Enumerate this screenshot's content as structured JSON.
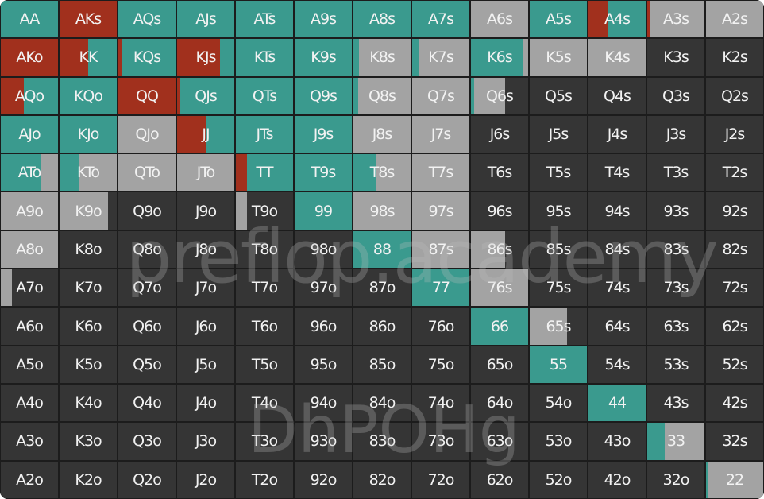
{
  "colors": {
    "raise": "#a1301d",
    "call": "#3a9a8e",
    "fold": "#a3a3a3",
    "none": "#353535"
  },
  "watermark": {
    "line1": "preflop.academy",
    "line2": "DhPOHg"
  },
  "hands": [
    [
      "AA",
      "AKs",
      "AQs",
      "AJs",
      "ATs",
      "A9s",
      "A8s",
      "A7s",
      "A6s",
      "A5s",
      "A4s",
      "A3s",
      "A2s"
    ],
    [
      "AKo",
      "KK",
      "KQs",
      "KJs",
      "KTs",
      "K9s",
      "K8s",
      "K7s",
      "K6s",
      "K5s",
      "K4s",
      "K3s",
      "K2s"
    ],
    [
      "AQo",
      "KQo",
      "QQ",
      "QJs",
      "QTs",
      "Q9s",
      "Q8s",
      "Q7s",
      "Q6s",
      "Q5s",
      "Q4s",
      "Q3s",
      "Q2s"
    ],
    [
      "AJo",
      "KJo",
      "QJo",
      "JJ",
      "JTs",
      "J9s",
      "J8s",
      "J7s",
      "J6s",
      "J5s",
      "J4s",
      "J3s",
      "J2s"
    ],
    [
      "ATo",
      "KTo",
      "QTo",
      "JTo",
      "TT",
      "T9s",
      "T8s",
      "T7s",
      "T6s",
      "T5s",
      "T4s",
      "T3s",
      "T2s"
    ],
    [
      "A9o",
      "K9o",
      "Q9o",
      "J9o",
      "T9o",
      "99",
      "98s",
      "97s",
      "96s",
      "95s",
      "94s",
      "93s",
      "92s"
    ],
    [
      "A8o",
      "K8o",
      "Q8o",
      "J8o",
      "T8o",
      "98o",
      "88",
      "87s",
      "86s",
      "85s",
      "84s",
      "83s",
      "82s"
    ],
    [
      "A7o",
      "K7o",
      "Q7o",
      "J7o",
      "T7o",
      "97o",
      "87o",
      "77",
      "76s",
      "75s",
      "74s",
      "73s",
      "72s"
    ],
    [
      "A6o",
      "K6o",
      "Q6o",
      "J6o",
      "T6o",
      "96o",
      "86o",
      "76o",
      "66",
      "65s",
      "64s",
      "63s",
      "62s"
    ],
    [
      "A5o",
      "K5o",
      "Q5o",
      "J5o",
      "T5o",
      "95o",
      "85o",
      "75o",
      "65o",
      "55",
      "54s",
      "53s",
      "52s"
    ],
    [
      "A4o",
      "K4o",
      "Q4o",
      "J4o",
      "T4o",
      "94o",
      "84o",
      "74o",
      "64o",
      "54o",
      "44",
      "43s",
      "42s"
    ],
    [
      "A3o",
      "K3o",
      "Q3o",
      "J3o",
      "T3o",
      "93o",
      "83o",
      "73o",
      "63o",
      "53o",
      "43o",
      "33",
      "32s"
    ],
    [
      "A2o",
      "K2o",
      "Q2o",
      "J2o",
      "T2o",
      "92o",
      "82o",
      "72o",
      "62o",
      "52o",
      "42o",
      "32o",
      "22"
    ]
  ],
  "frequencies": [
    [
      [
        0,
        1,
        0
      ],
      [
        1,
        0,
        0
      ],
      [
        0,
        1,
        0
      ],
      [
        0,
        1,
        0
      ],
      [
        0,
        1,
        0
      ],
      [
        0,
        1,
        0
      ],
      [
        0,
        1,
        0
      ],
      [
        0,
        1,
        0
      ],
      [
        0,
        0,
        1
      ],
      [
        0,
        1,
        0
      ],
      [
        0.35,
        0.65,
        0
      ],
      [
        0.05,
        0,
        0.95
      ],
      [
        0,
        0,
        1
      ]
    ],
    [
      [
        1,
        0,
        0
      ],
      [
        0.5,
        0.5,
        0
      ],
      [
        0.05,
        0.95,
        0
      ],
      [
        0.75,
        0.25,
        0
      ],
      [
        0,
        1,
        0
      ],
      [
        0,
        1,
        0
      ],
      [
        0,
        0.1,
        0.9
      ],
      [
        0,
        0.12,
        0.88
      ],
      [
        0,
        0.9,
        0.1
      ],
      [
        0,
        0,
        1
      ],
      [
        0,
        0,
        1
      ],
      [
        0,
        0,
        0
      ],
      [
        0,
        0,
        0
      ]
    ],
    [
      [
        0.4,
        0.6,
        0
      ],
      [
        0,
        1,
        0
      ],
      [
        1,
        0,
        0
      ],
      [
        0.05,
        0.95,
        0
      ],
      [
        0,
        1,
        0
      ],
      [
        0,
        1,
        0
      ],
      [
        0,
        0.08,
        0.92
      ],
      [
        0,
        0,
        1
      ],
      [
        0,
        0.05,
        0.55
      ],
      [
        0,
        0,
        0
      ],
      [
        0,
        0,
        0
      ],
      [
        0,
        0,
        0
      ],
      [
        0,
        0,
        0
      ]
    ],
    [
      [
        0,
        1,
        0
      ],
      [
        0,
        1,
        0
      ],
      [
        0,
        0,
        1
      ],
      [
        0.5,
        0.5,
        0
      ],
      [
        0,
        1,
        0
      ],
      [
        0,
        1,
        0
      ],
      [
        0,
        0,
        1
      ],
      [
        0,
        0,
        1
      ],
      [
        0,
        0,
        0
      ],
      [
        0,
        0,
        0
      ],
      [
        0,
        0,
        0
      ],
      [
        0,
        0,
        0
      ],
      [
        0,
        0,
        0
      ]
    ],
    [
      [
        0,
        0.7,
        0.3
      ],
      [
        0,
        0.35,
        0.65
      ],
      [
        0,
        0,
        1
      ],
      [
        0,
        0,
        1
      ],
      [
        0.2,
        0.8,
        0
      ],
      [
        0,
        1,
        0
      ],
      [
        0,
        0.4,
        0.6
      ],
      [
        0,
        0,
        1
      ],
      [
        0,
        0,
        0
      ],
      [
        0,
        0,
        0
      ],
      [
        0,
        0,
        0
      ],
      [
        0,
        0,
        0
      ],
      [
        0,
        0,
        0
      ]
    ],
    [
      [
        0,
        0,
        1
      ],
      [
        0,
        0,
        0.85
      ],
      [
        0,
        0,
        0
      ],
      [
        0,
        0,
        0
      ],
      [
        0,
        0,
        0.2
      ],
      [
        0,
        1,
        0
      ],
      [
        0,
        0,
        1
      ],
      [
        0,
        0,
        1
      ],
      [
        0,
        0,
        0
      ],
      [
        0,
        0,
        0
      ],
      [
        0,
        0,
        0
      ],
      [
        0,
        0,
        0
      ],
      [
        0,
        0,
        0
      ]
    ],
    [
      [
        0,
        0,
        1
      ],
      [
        0,
        0,
        0
      ],
      [
        0,
        0,
        0
      ],
      [
        0,
        0,
        0
      ],
      [
        0,
        0,
        0
      ],
      [
        0,
        0,
        0
      ],
      [
        0,
        1,
        0
      ],
      [
        0,
        0,
        1
      ],
      [
        0,
        0,
        0.6
      ],
      [
        0,
        0,
        0
      ],
      [
        0,
        0,
        0
      ],
      [
        0,
        0,
        0
      ],
      [
        0,
        0,
        0
      ]
    ],
    [
      [
        0,
        0,
        0.2
      ],
      [
        0,
        0,
        0
      ],
      [
        0,
        0,
        0
      ],
      [
        0,
        0,
        0
      ],
      [
        0,
        0,
        0
      ],
      [
        0,
        0,
        0
      ],
      [
        0,
        0,
        0
      ],
      [
        0,
        1,
        0
      ],
      [
        0,
        0,
        1
      ],
      [
        0,
        0,
        0
      ],
      [
        0,
        0,
        0
      ],
      [
        0,
        0,
        0
      ],
      [
        0,
        0,
        0
      ]
    ],
    [
      [
        0,
        0,
        0
      ],
      [
        0,
        0,
        0
      ],
      [
        0,
        0,
        0
      ],
      [
        0,
        0,
        0
      ],
      [
        0,
        0,
        0
      ],
      [
        0,
        0,
        0
      ],
      [
        0,
        0,
        0
      ],
      [
        0,
        0,
        0
      ],
      [
        0,
        1,
        0
      ],
      [
        0,
        0,
        0.65
      ],
      [
        0,
        0,
        0
      ],
      [
        0,
        0,
        0
      ],
      [
        0,
        0,
        0
      ]
    ],
    [
      [
        0,
        0,
        0
      ],
      [
        0,
        0,
        0
      ],
      [
        0,
        0,
        0
      ],
      [
        0,
        0,
        0
      ],
      [
        0,
        0,
        0
      ],
      [
        0,
        0,
        0
      ],
      [
        0,
        0,
        0
      ],
      [
        0,
        0,
        0
      ],
      [
        0,
        0,
        0
      ],
      [
        0,
        1,
        0
      ],
      [
        0,
        0,
        0
      ],
      [
        0,
        0,
        0
      ],
      [
        0,
        0,
        0
      ]
    ],
    [
      [
        0,
        0,
        0
      ],
      [
        0,
        0,
        0
      ],
      [
        0,
        0,
        0
      ],
      [
        0,
        0,
        0
      ],
      [
        0,
        0,
        0
      ],
      [
        0,
        0,
        0
      ],
      [
        0,
        0,
        0
      ],
      [
        0,
        0,
        0
      ],
      [
        0,
        0,
        0
      ],
      [
        0,
        0,
        0
      ],
      [
        0,
        1,
        0
      ],
      [
        0,
        0,
        0
      ],
      [
        0,
        0,
        0
      ]
    ],
    [
      [
        0,
        0,
        0
      ],
      [
        0,
        0,
        0
      ],
      [
        0,
        0,
        0
      ],
      [
        0,
        0,
        0
      ],
      [
        0,
        0,
        0
      ],
      [
        0,
        0,
        0
      ],
      [
        0,
        0,
        0
      ],
      [
        0,
        0,
        0
      ],
      [
        0,
        0,
        0
      ],
      [
        0,
        0,
        0
      ],
      [
        0,
        0,
        0
      ],
      [
        0,
        0.3,
        0.7
      ],
      [
        0,
        0,
        0
      ]
    ],
    [
      [
        0,
        0,
        0
      ],
      [
        0,
        0,
        0
      ],
      [
        0,
        0,
        0
      ],
      [
        0,
        0,
        0
      ],
      [
        0,
        0,
        0
      ],
      [
        0,
        0,
        0
      ],
      [
        0,
        0,
        0
      ],
      [
        0,
        0,
        0
      ],
      [
        0,
        0,
        0
      ],
      [
        0,
        0,
        0
      ],
      [
        0,
        0,
        0
      ],
      [
        0,
        0,
        0
      ],
      [
        0,
        0.04,
        0.96
      ]
    ]
  ]
}
